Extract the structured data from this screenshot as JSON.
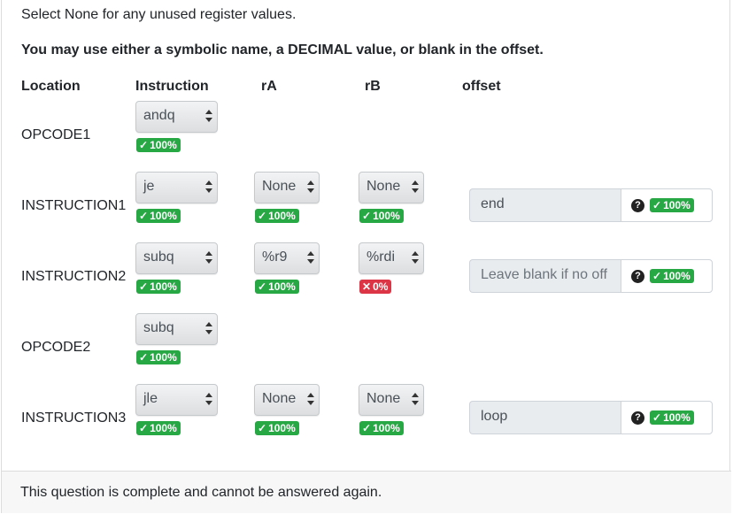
{
  "instructions": {
    "intro": "Select None for any unused register values.",
    "rule": "You may use either a symbolic name, a DECIMAL value, or blank in the offset."
  },
  "headers": {
    "location": "Location",
    "instruction": "Instruction",
    "ra": "rA",
    "rb": "rB",
    "offset": "offset"
  },
  "rows": [
    {
      "label": "OPCODE1",
      "instruction": {
        "value": "andq",
        "score": "100%",
        "status": "correct"
      }
    },
    {
      "label": "INSTRUCTION1",
      "instruction": {
        "value": "je",
        "score": "100%",
        "status": "correct"
      },
      "ra": {
        "value": "None",
        "score": "100%",
        "status": "correct"
      },
      "rb": {
        "value": "None",
        "score": "100%",
        "status": "correct"
      },
      "offset": {
        "value": "end",
        "placeholder": "",
        "score": "100%",
        "status": "correct"
      }
    },
    {
      "label": "INSTRUCTION2",
      "instruction": {
        "value": "subq",
        "score": "100%",
        "status": "correct"
      },
      "ra": {
        "value": "%r9",
        "score": "100%",
        "status": "correct"
      },
      "rb": {
        "value": "%rdi",
        "score": "0%",
        "status": "incorrect"
      },
      "offset": {
        "value": "",
        "placeholder": "Leave blank if no off",
        "score": "100%",
        "status": "correct"
      }
    },
    {
      "label": "OPCODE2",
      "instruction": {
        "value": "subq",
        "score": "100%",
        "status": "correct"
      }
    },
    {
      "label": "INSTRUCTION3",
      "instruction": {
        "value": "jle",
        "score": "100%",
        "status": "correct"
      },
      "ra": {
        "value": "None",
        "score": "100%",
        "status": "correct"
      },
      "rb": {
        "value": "None",
        "score": "100%",
        "status": "correct"
      },
      "offset": {
        "value": "loop",
        "placeholder": "",
        "score": "100%",
        "status": "correct"
      }
    }
  ],
  "icons": {
    "check": "check-icon",
    "cross": "x-icon",
    "help": "question-circle-icon",
    "select_arrows": "select-arrows-icon"
  },
  "help_glyph": "?",
  "colors": {
    "correct": "#28a745",
    "incorrect": "#dc3545"
  },
  "footer": {
    "message": "This question is complete and cannot be answered again."
  }
}
